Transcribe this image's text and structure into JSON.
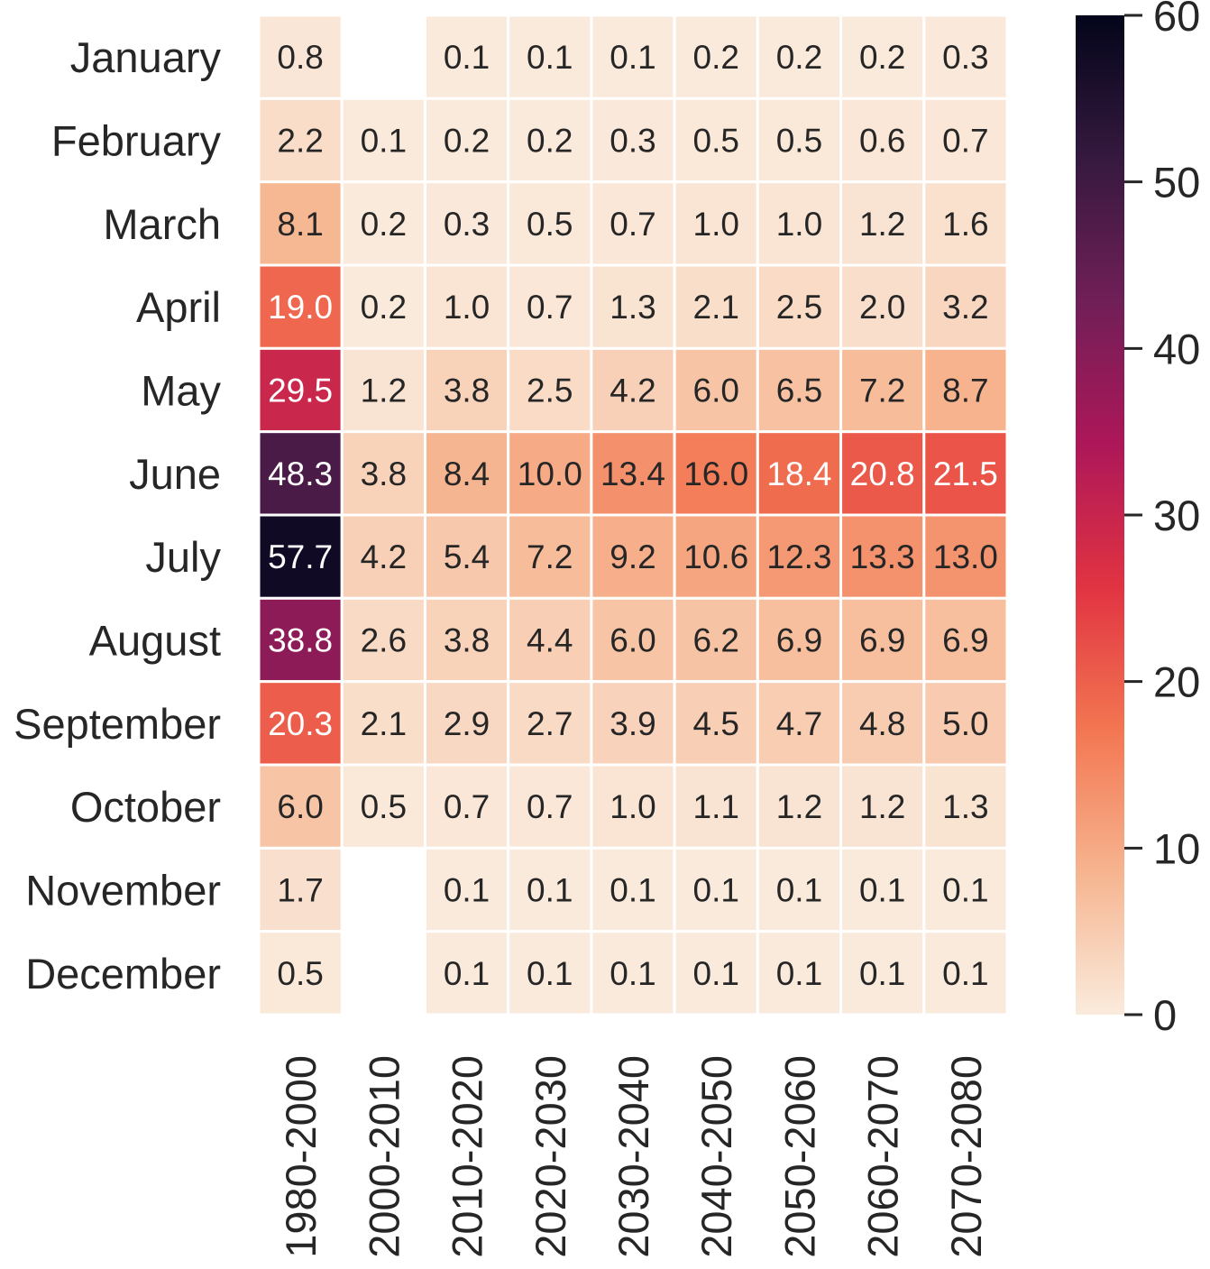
{
  "chart_data": {
    "type": "heatmap",
    "rows": [
      "January",
      "February",
      "March",
      "April",
      "May",
      "June",
      "July",
      "August",
      "September",
      "October",
      "November",
      "December"
    ],
    "columns": [
      "1980-2000",
      "2000-2010",
      "2010-2020",
      "2020-2030",
      "2030-2040",
      "2040-2050",
      "2050-2060",
      "2060-2070",
      "2070-2080"
    ],
    "values": [
      [
        0.8,
        null,
        0.1,
        0.1,
        0.1,
        0.2,
        0.2,
        0.2,
        0.3
      ],
      [
        2.2,
        0.1,
        0.2,
        0.2,
        0.3,
        0.5,
        0.5,
        0.6,
        0.7
      ],
      [
        8.1,
        0.2,
        0.3,
        0.5,
        0.7,
        1.0,
        1.0,
        1.2,
        1.6
      ],
      [
        19.0,
        0.2,
        1.0,
        0.7,
        1.3,
        2.1,
        2.5,
        2.0,
        3.2
      ],
      [
        29.5,
        1.2,
        3.8,
        2.5,
        4.2,
        6.0,
        6.5,
        7.2,
        8.7
      ],
      [
        48.3,
        3.8,
        8.4,
        10.0,
        13.4,
        16.0,
        18.4,
        20.8,
        21.5
      ],
      [
        57.7,
        4.2,
        5.4,
        7.2,
        9.2,
        10.6,
        12.3,
        13.3,
        13.0
      ],
      [
        38.8,
        2.6,
        3.8,
        4.4,
        6.0,
        6.2,
        6.9,
        6.9,
        6.9
      ],
      [
        20.3,
        2.1,
        2.9,
        2.7,
        3.9,
        4.5,
        4.7,
        4.8,
        5.0
      ],
      [
        6.0,
        0.5,
        0.7,
        0.7,
        1.0,
        1.1,
        1.2,
        1.2,
        1.3
      ],
      [
        1.7,
        null,
        0.1,
        0.1,
        0.1,
        0.1,
        0.1,
        0.1,
        0.1
      ],
      [
        0.5,
        null,
        0.1,
        0.1,
        0.1,
        0.1,
        0.1,
        0.1,
        0.1
      ]
    ],
    "value_format": "0.0",
    "colorbar": {
      "range": [
        0,
        60
      ],
      "ticks": [
        0,
        10,
        20,
        30,
        40,
        50,
        60
      ],
      "colormap": "rocket_r",
      "color_stops": [
        "#faebdd",
        "#f6b48f",
        "#f37651",
        "#e13342",
        "#ad1759",
        "#701f57",
        "#35193e",
        "#03051a"
      ]
    },
    "grid_color": "#ffffff"
  }
}
